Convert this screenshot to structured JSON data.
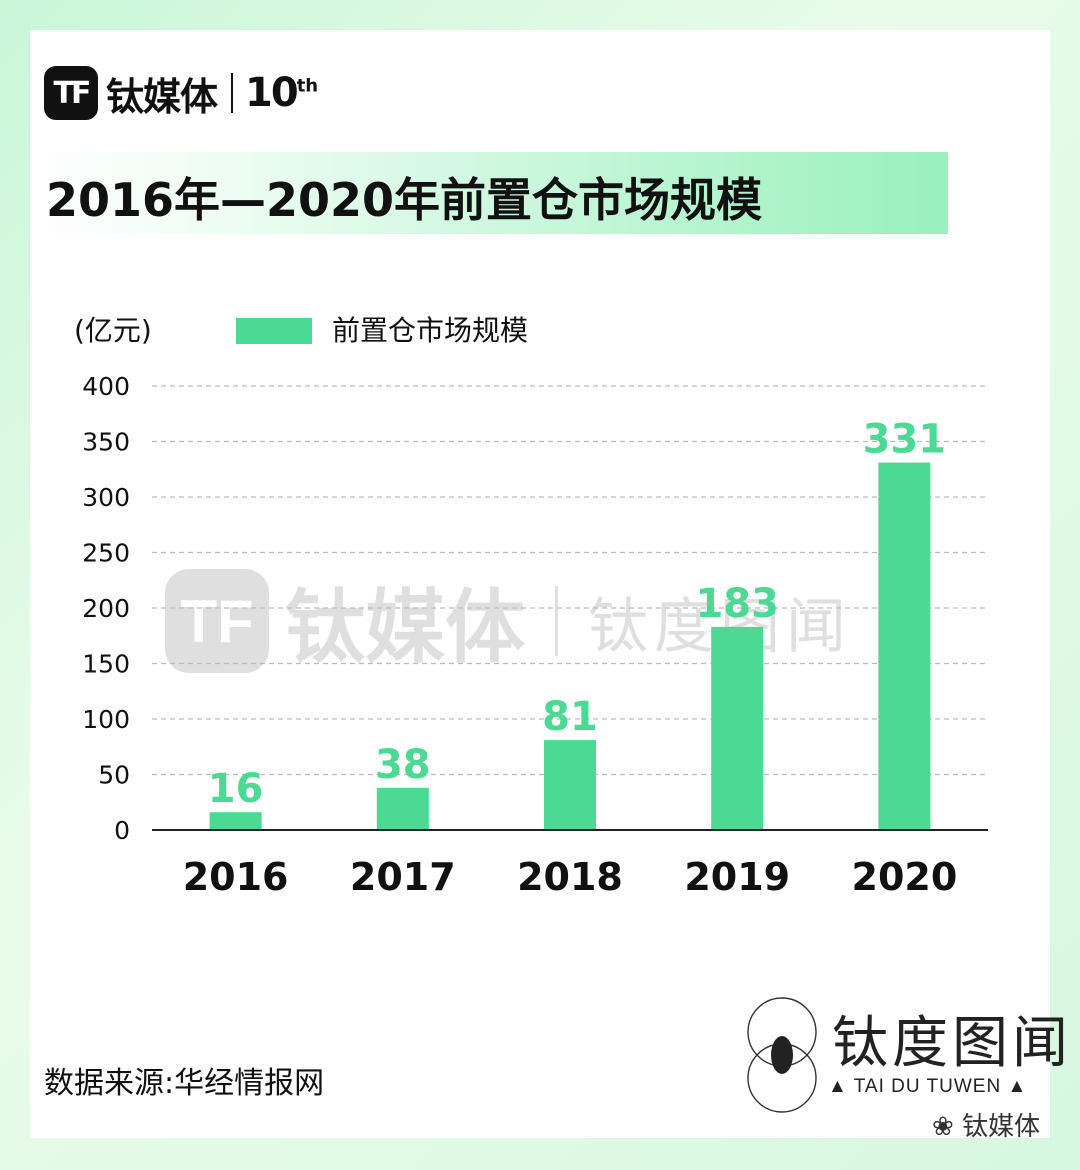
{
  "brand": {
    "logo_text": "TF",
    "name": "钛媒体",
    "anniversary": "10",
    "anniversary_sup": "th"
  },
  "source_text": "数据来源:华经情报网",
  "tuwen_logo": {
    "name": "钛度图闻",
    "subtitle": "▲ TAI DU TUWEN ▲"
  },
  "wechat_handle": "钛媒体",
  "watermark": {
    "name": "钛媒体",
    "tuwen": "钛度图闻"
  },
  "colors": {
    "bar": "#4cd994",
    "label": "#4cd994",
    "grid": "#bbbbbb",
    "axis": "#222222"
  },
  "chart_data": {
    "type": "bar",
    "title": "2016年—2020年前置仓市场规模",
    "ylabel": "(亿元)",
    "xlabel": "",
    "categories": [
      "2016",
      "2017",
      "2018",
      "2019",
      "2020"
    ],
    "series": [
      {
        "name": "前置仓市场规模",
        "values": [
          16,
          38,
          81,
          183,
          331
        ]
      }
    ],
    "ylim": [
      0,
      400
    ],
    "yticks": [
      0,
      50,
      100,
      150,
      200,
      250,
      300,
      350,
      400
    ],
    "grid": true,
    "legend_position": "top-left"
  }
}
